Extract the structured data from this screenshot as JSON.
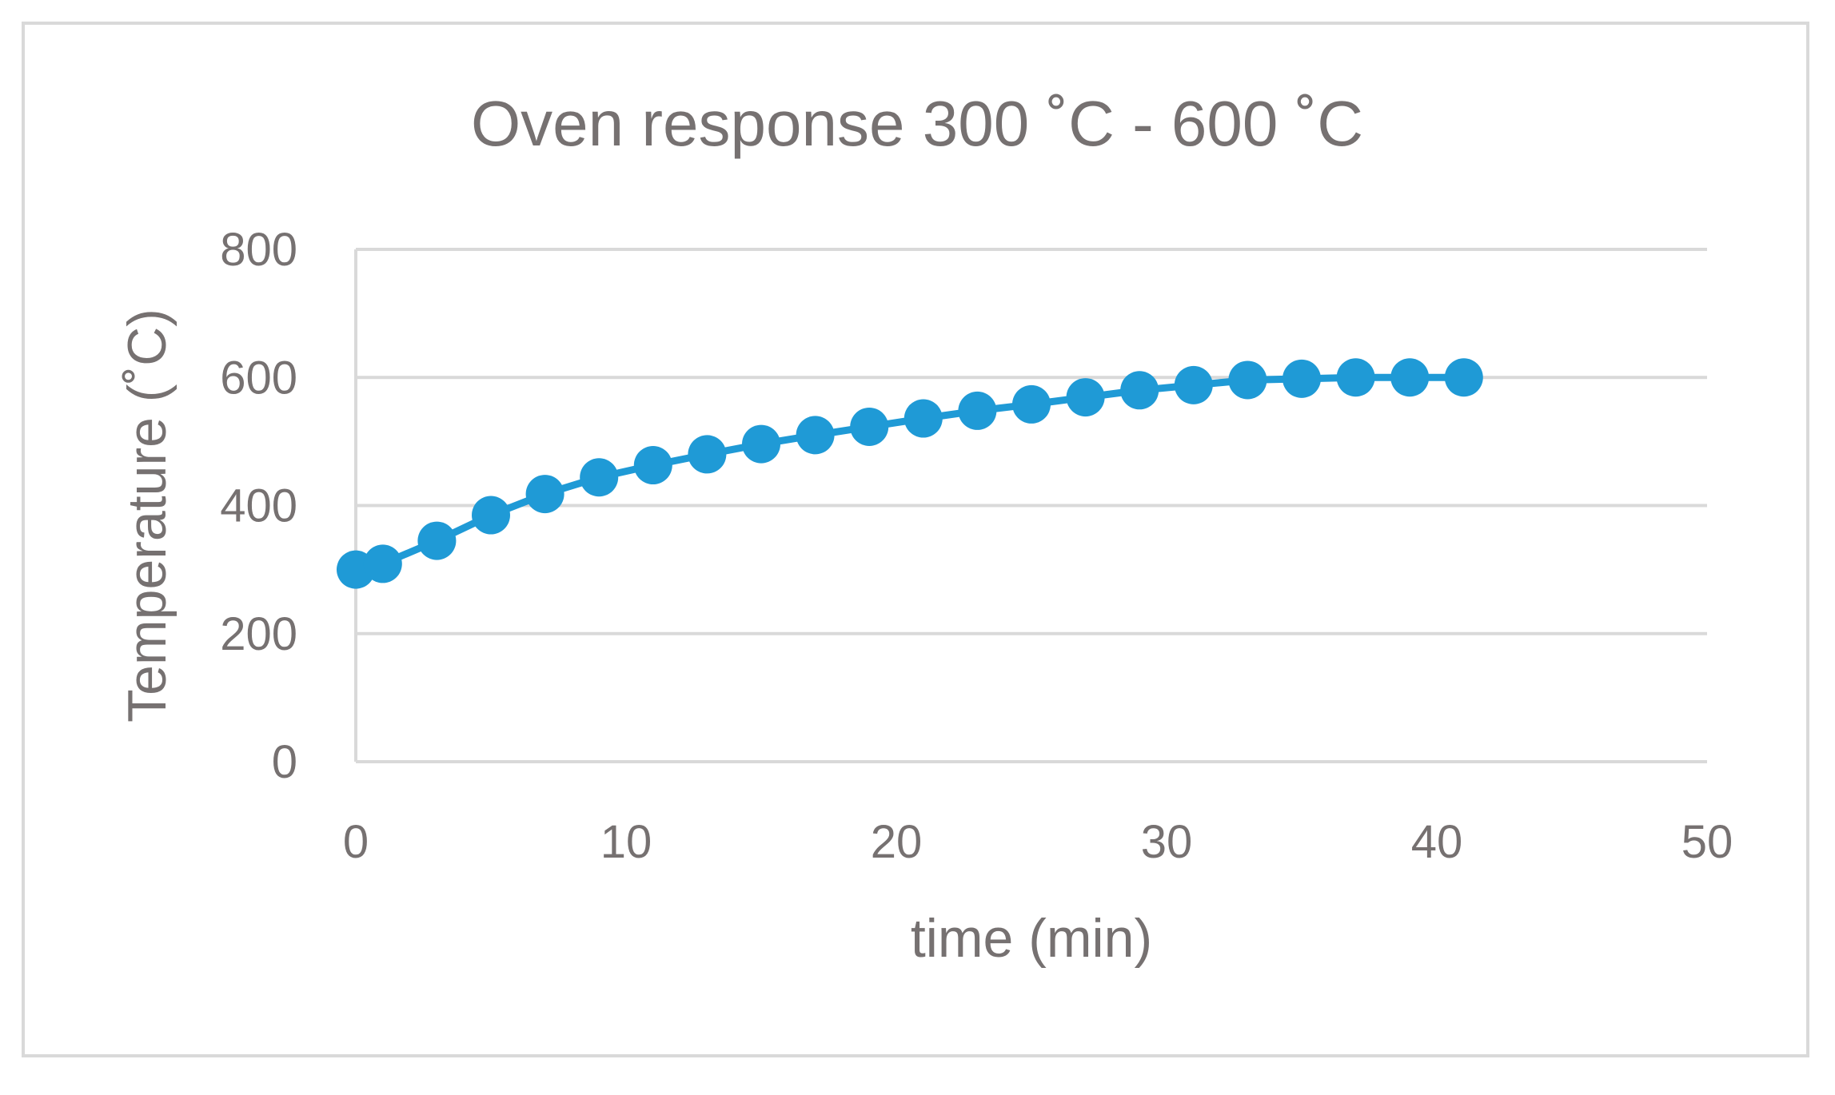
{
  "chart_data": {
    "type": "line",
    "title": "Oven response 300 ˚C - 600 ˚C",
    "xlabel": "time (min)",
    "ylabel": "Temperature (˚C)",
    "xlim": [
      0,
      50
    ],
    "ylim": [
      0,
      800
    ],
    "x_ticks": [
      "0",
      "10",
      "20",
      "30",
      "40",
      "50"
    ],
    "y_ticks": [
      "0",
      "200",
      "400",
      "600",
      "800"
    ],
    "grid": "horizontal",
    "legend": "none",
    "series": [
      {
        "color": "#1f9ad6",
        "marker": "circle",
        "x": [
          0,
          1,
          3,
          5,
          7,
          9,
          11,
          13,
          15,
          17,
          19,
          21,
          23,
          25,
          27,
          29,
          31,
          33,
          35,
          37,
          39,
          41
        ],
        "y": [
          300,
          309,
          345,
          385,
          418,
          444,
          463,
          480,
          496,
          510,
          523,
          536,
          548,
          558,
          569,
          580,
          588,
          596,
          598,
          600,
          600,
          600
        ]
      }
    ]
  }
}
